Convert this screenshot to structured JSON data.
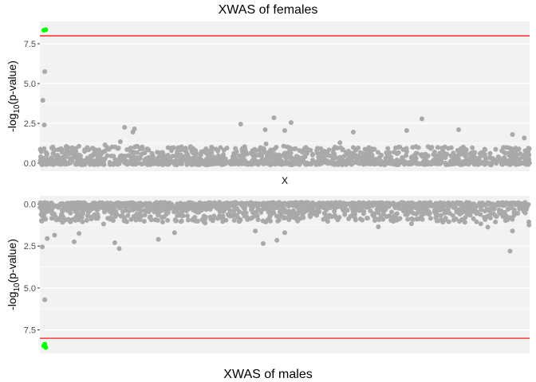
{
  "colors": {
    "panel_bg": "#F2F2F2",
    "grid_major": "#FFFFFF",
    "points": "#A9A9A9",
    "significant_points": "#00FF00",
    "threshold_line": "#FF0000",
    "tick_text": "#4D4D4D"
  },
  "chart_data": [
    {
      "type": "scatter",
      "title": "XWAS of females",
      "subtitle": "",
      "xlabel": "X",
      "ylabel_main": "-log",
      "ylabel_sub": "10",
      "ylabel_tail": "(p-value)",
      "y_reversed": false,
      "ylim": [
        -0.5,
        8.9
      ],
      "yticks": [
        0,
        2.5,
        5,
        7.5
      ],
      "ytick_labels": [
        "0.0",
        "2.5",
        "5.0",
        "7.5"
      ],
      "xlim": [
        0,
        1
      ],
      "threshold": 8,
      "grid": true,
      "legend": "none",
      "outliers": [
        {
          "x": 0.008,
          "y": 8.35,
          "sig": true
        },
        {
          "x": 0.012,
          "y": 8.38,
          "sig": true
        },
        {
          "x": 0.01,
          "y": 5.75,
          "sig": false
        },
        {
          "x": 0.006,
          "y": 3.95,
          "sig": false
        },
        {
          "x": 0.009,
          "y": 2.4,
          "sig": false
        },
        {
          "x": 0.173,
          "y": 2.25,
          "sig": false
        },
        {
          "x": 0.193,
          "y": 2.15,
          "sig": false
        },
        {
          "x": 0.19,
          "y": 1.95,
          "sig": false
        },
        {
          "x": 0.41,
          "y": 2.45,
          "sig": false
        },
        {
          "x": 0.478,
          "y": 2.85,
          "sig": false
        },
        {
          "x": 0.513,
          "y": 2.55,
          "sig": false
        },
        {
          "x": 0.46,
          "y": 2.1,
          "sig": false
        },
        {
          "x": 0.5,
          "y": 2.05,
          "sig": false
        },
        {
          "x": 0.64,
          "y": 1.95,
          "sig": false
        },
        {
          "x": 0.749,
          "y": 2.05,
          "sig": false
        },
        {
          "x": 0.78,
          "y": 2.78,
          "sig": false
        },
        {
          "x": 0.855,
          "y": 2.1,
          "sig": false
        },
        {
          "x": 0.965,
          "y": 1.8,
          "sig": false
        }
      ]
    },
    {
      "type": "scatter",
      "title": "",
      "subtitle": "",
      "xlabel": "XWAS of males",
      "ylabel_main": "-log",
      "ylabel_sub": "10",
      "ylabel_tail": "(p-value)",
      "y_reversed": true,
      "ylim": [
        -0.5,
        8.9
      ],
      "yticks": [
        0,
        2.5,
        5,
        7.5
      ],
      "ytick_labels": [
        "0.0",
        "2.5",
        "5.0",
        "7.5"
      ],
      "xlim": [
        0,
        1
      ],
      "threshold": 8,
      "grid": true,
      "legend": "none",
      "outliers": [
        {
          "x": 0.01,
          "y": 8.35,
          "sig": true
        },
        {
          "x": 0.012,
          "y": 8.55,
          "sig": true
        },
        {
          "x": 0.008,
          "y": 8.45,
          "sig": true
        },
        {
          "x": 0.01,
          "y": 5.7,
          "sig": false
        },
        {
          "x": 0.005,
          "y": 2.55,
          "sig": false
        },
        {
          "x": 0.015,
          "y": 2.05,
          "sig": false
        },
        {
          "x": 0.03,
          "y": 1.85,
          "sig": false
        },
        {
          "x": 0.07,
          "y": 2.25,
          "sig": false
        },
        {
          "x": 0.08,
          "y": 1.75,
          "sig": false
        },
        {
          "x": 0.153,
          "y": 2.3,
          "sig": false
        },
        {
          "x": 0.162,
          "y": 2.65,
          "sig": false
        },
        {
          "x": 0.242,
          "y": 2.1,
          "sig": false
        },
        {
          "x": 0.275,
          "y": 1.7,
          "sig": false
        },
        {
          "x": 0.456,
          "y": 2.35,
          "sig": false
        },
        {
          "x": 0.484,
          "y": 2.15,
          "sig": false
        },
        {
          "x": 0.5,
          "y": 1.7,
          "sig": false
        },
        {
          "x": 0.44,
          "y": 1.6,
          "sig": false
        },
        {
          "x": 0.96,
          "y": 2.8,
          "sig": false
        },
        {
          "x": 0.965,
          "y": 1.6,
          "sig": false
        }
      ]
    }
  ]
}
